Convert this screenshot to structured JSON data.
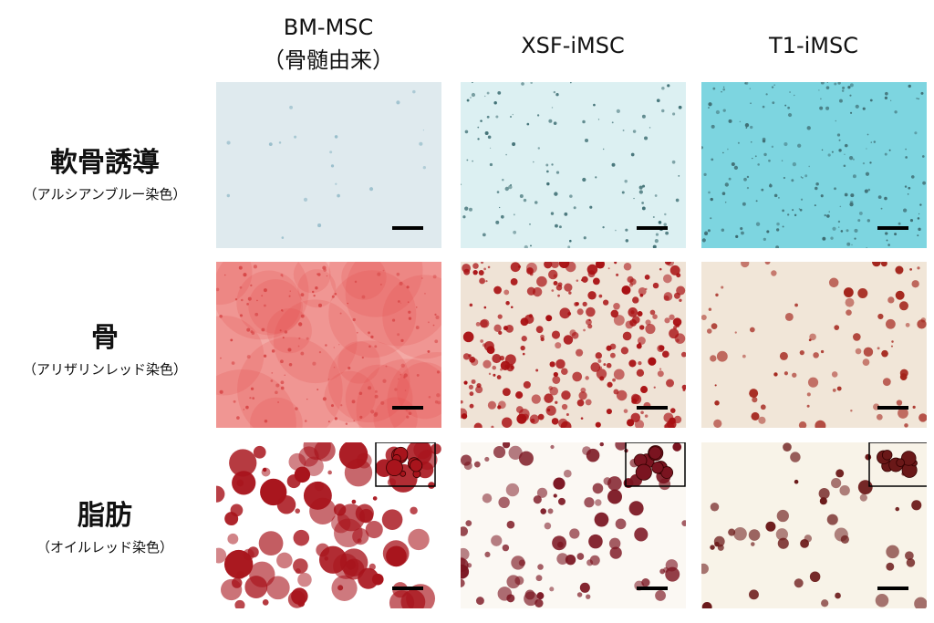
{
  "columns": [
    {
      "lines": [
        "BM-MSC",
        "（骨髄由来）"
      ]
    },
    {
      "lines": [
        "XSF-iMSC"
      ]
    },
    {
      "lines": [
        "T1-iMSC"
      ]
    }
  ],
  "rows": [
    {
      "title": "軟骨誘導",
      "subtitle": "（アルシアンブルー染色）"
    },
    {
      "title": "骨",
      "subtitle": "（アリザリンレッド染色）"
    },
    {
      "title": "脂肪",
      "subtitle": "（オイルレッド染色）"
    }
  ]
}
